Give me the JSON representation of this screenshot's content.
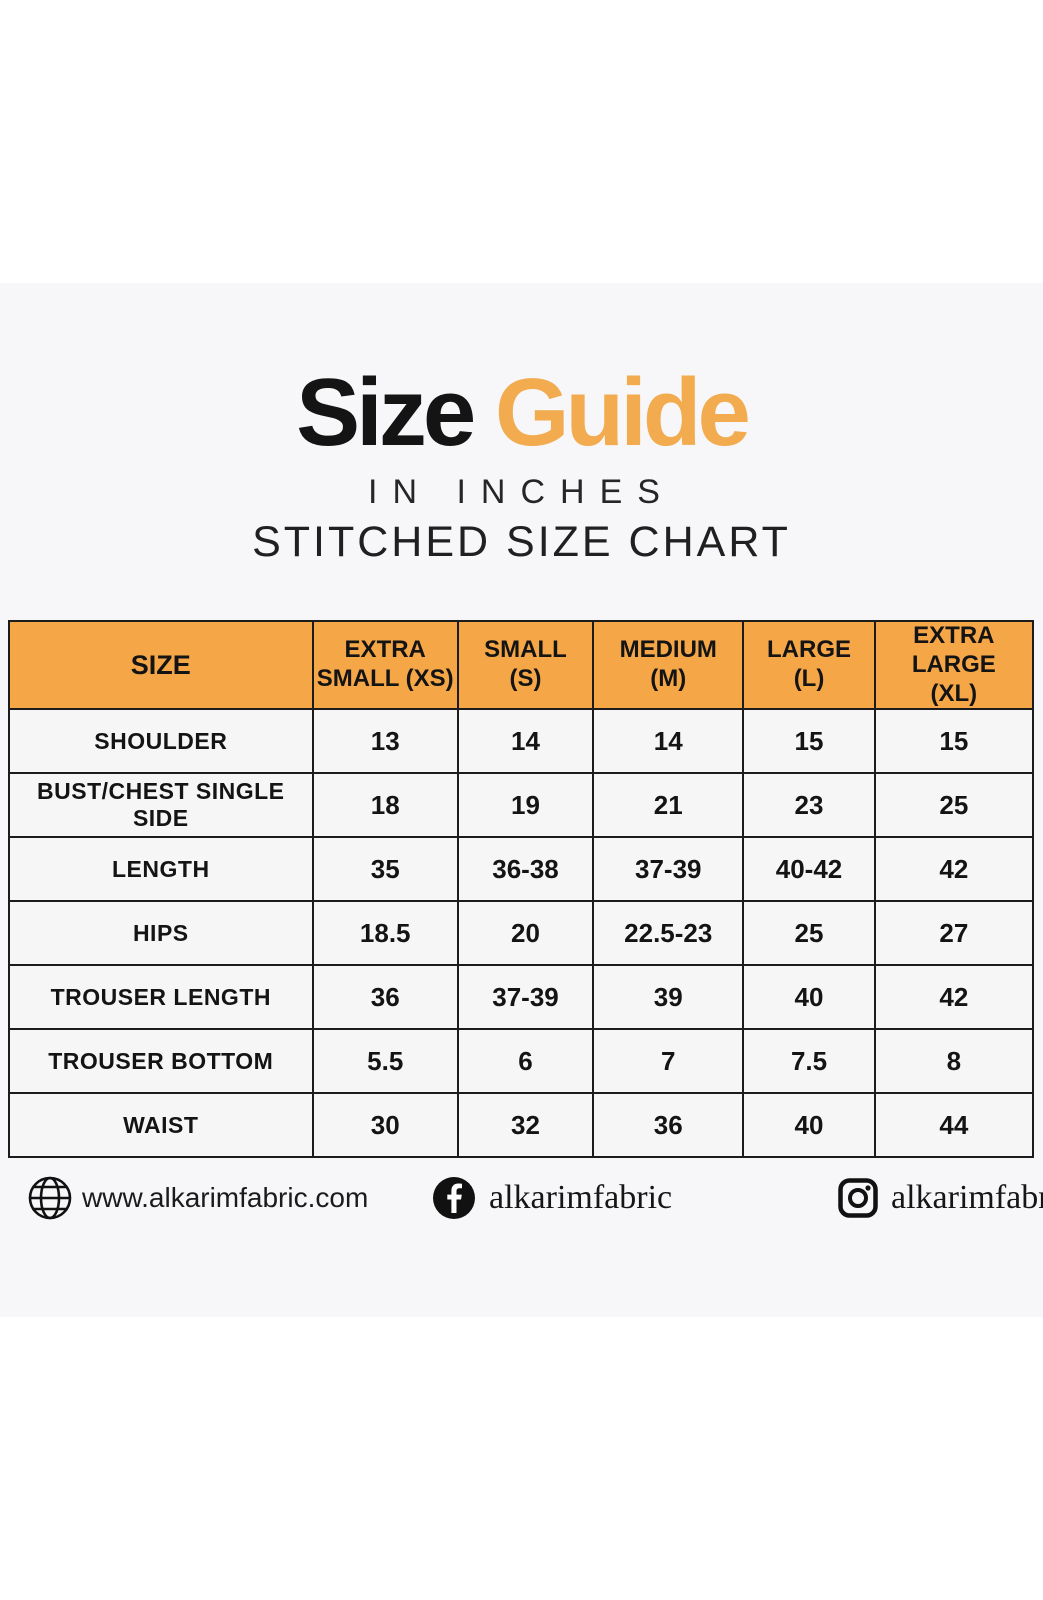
{
  "title": {
    "word1": "Size",
    "word2": "Guide",
    "accent_color": "#F2AB4F",
    "subtitle1": "IN INCHES",
    "subtitle2": "STITCHED SIZE CHART"
  },
  "chart_data": {
    "type": "table",
    "title": "Size Guide — Stitched Size Chart (in inches)",
    "header_bg_color": "#F5A647",
    "border_color": "#1C1C1C",
    "columns": [
      "SIZE",
      "EXTRA\nSMALL (XS)",
      "SMALL\n(S)",
      "MEDIUM\n(M)",
      "LARGE\n(L)",
      "EXTRA LARGE\n(XL)"
    ],
    "rows": [
      {
        "label": "SHOULDER",
        "values": [
          "13",
          "14",
          "14",
          "15",
          "15"
        ]
      },
      {
        "label": "BUST/CHEST SINGLE SIDE",
        "values": [
          "18",
          "19",
          "21",
          "23",
          "25"
        ]
      },
      {
        "label": "LENGTH",
        "values": [
          "35",
          "36-38",
          "37-39",
          "40-42",
          "42"
        ]
      },
      {
        "label": "HIPS",
        "values": [
          "18.5",
          "20",
          "22.5-23",
          "25",
          "27"
        ]
      },
      {
        "label": "TROUSER LENGTH",
        "values": [
          "36",
          "37-39",
          "39",
          "40",
          "42"
        ]
      },
      {
        "label": "TROUSER BOTTOM",
        "values": [
          "5.5",
          "6",
          "7",
          "7.5",
          "8"
        ]
      },
      {
        "label": "WAIST",
        "values": [
          "30",
          "32",
          "36",
          "40",
          "44"
        ]
      }
    ]
  },
  "footer": {
    "website": {
      "icon": "globe-icon",
      "text": "www.alkarimfabric.com"
    },
    "facebook": {
      "icon": "facebook-icon",
      "text": "alkarimfabric"
    },
    "instagram": {
      "icon": "instagram-icon",
      "text": "alkarimfabrics"
    }
  }
}
